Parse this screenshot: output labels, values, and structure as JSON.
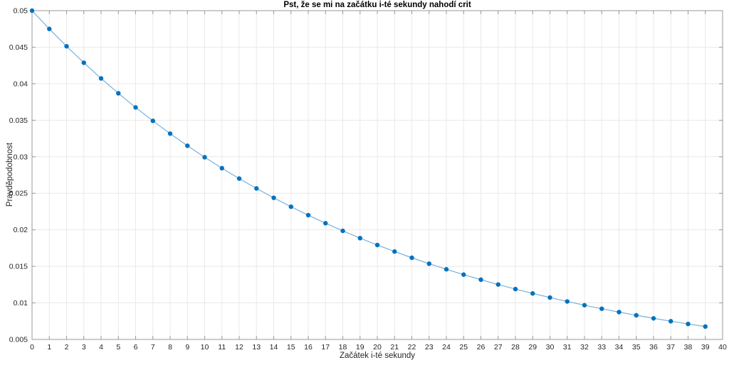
{
  "figure": {
    "title": "Pst, že se mi na začátku i-té sekundy nahodí crit",
    "xlabel": "Začátek i-té sekundy",
    "ylabel": "Pravděpodobnost"
  },
  "chart_data": {
    "type": "line",
    "title": "Pst, že se mi na začátku i-té sekundy nahodí crit",
    "xlabel": "Začátek i-té sekundy",
    "ylabel": "Pravděpodobnost",
    "x": [
      0,
      1,
      2,
      3,
      4,
      5,
      6,
      7,
      8,
      9,
      10,
      11,
      12,
      13,
      14,
      15,
      16,
      17,
      18,
      19,
      20,
      21,
      22,
      23,
      24,
      25,
      26,
      27,
      28,
      29,
      30,
      31,
      32,
      33,
      34,
      35,
      36,
      37,
      38,
      39
    ],
    "y": [
      0.05,
      0.0475,
      0.045125,
      0.042869,
      0.040725,
      0.038689,
      0.036755,
      0.034917,
      0.033171,
      0.031512,
      0.029937,
      0.02844,
      0.027018,
      0.025667,
      0.024384,
      0.023164,
      0.022006,
      0.020906,
      0.019861,
      0.018868,
      0.017924,
      0.017028,
      0.016177,
      0.015368,
      0.014599,
      0.01387,
      0.013176,
      0.012517,
      0.011891,
      0.011297,
      0.010732,
      0.010195,
      0.009686,
      0.009201,
      0.008741,
      0.008304,
      0.007889,
      0.007495,
      0.00712,
      0.006764
    ],
    "xlim": [
      0,
      40
    ],
    "ylim": [
      0.005,
      0.05
    ],
    "xticks": [
      0,
      1,
      2,
      3,
      4,
      5,
      6,
      7,
      8,
      9,
      10,
      11,
      12,
      13,
      14,
      15,
      16,
      17,
      18,
      19,
      20,
      21,
      22,
      23,
      24,
      25,
      26,
      27,
      28,
      29,
      30,
      31,
      32,
      33,
      34,
      35,
      36,
      37,
      38,
      39,
      40
    ],
    "xtick_labels": [
      "0",
      "1",
      "2",
      "3",
      "4",
      "5",
      "6",
      "7",
      "8",
      "9",
      "10",
      "11",
      "12",
      "13",
      "14",
      "15",
      "16",
      "17",
      "18",
      "19",
      "20",
      "21",
      "22",
      "23",
      "24",
      "25",
      "26",
      "27",
      "28",
      "29",
      "30",
      "31",
      "32",
      "33",
      "34",
      "35",
      "36",
      "37",
      "38",
      "39",
      "40"
    ],
    "yticks": [
      0.005,
      0.01,
      0.015,
      0.02,
      0.025,
      0.03,
      0.035,
      0.04,
      0.045,
      0.05
    ],
    "ytick_labels": [
      "0.005",
      "0.01",
      "0.015",
      "0.02",
      "0.025",
      "0.03",
      "0.035",
      "0.04",
      "0.045",
      "0.05"
    ],
    "grid": true,
    "legend": null,
    "line_color": "#77b0dd",
    "marker_color": "#0072BD",
    "grid_color": "#e9e9e9",
    "axis_color": "#999999",
    "tick_label_color": "#262626"
  }
}
